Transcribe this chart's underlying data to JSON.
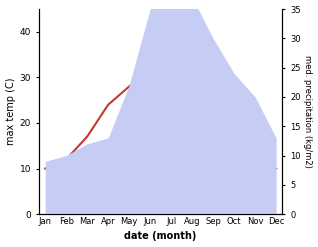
{
  "months": [
    "Jan",
    "Feb",
    "Mar",
    "Apr",
    "May",
    "Jun",
    "Jul",
    "Aug",
    "Sep",
    "Oct",
    "Nov",
    "Dec"
  ],
  "max_temp": [
    10,
    12,
    17,
    24,
    28,
    32,
    35,
    35,
    27,
    20,
    14,
    10
  ],
  "precipitation": [
    9,
    10,
    12,
    13,
    22,
    35,
    40,
    37,
    30,
    24,
    20,
    13
  ],
  "temp_ylim": [
    0,
    45
  ],
  "precip_ylim": [
    0,
    35
  ],
  "temp_color": "#c0392b",
  "precip_fill_color": "#c5cdf5",
  "xlabel": "date (month)",
  "ylabel_left": "max temp (C)",
  "ylabel_right": "med. precipitation (kg/m2)",
  "left_yticks": [
    0,
    10,
    20,
    30,
    40
  ],
  "right_yticks": [
    0,
    5,
    10,
    15,
    20,
    25,
    30,
    35
  ],
  "bg_color": "#ffffff"
}
